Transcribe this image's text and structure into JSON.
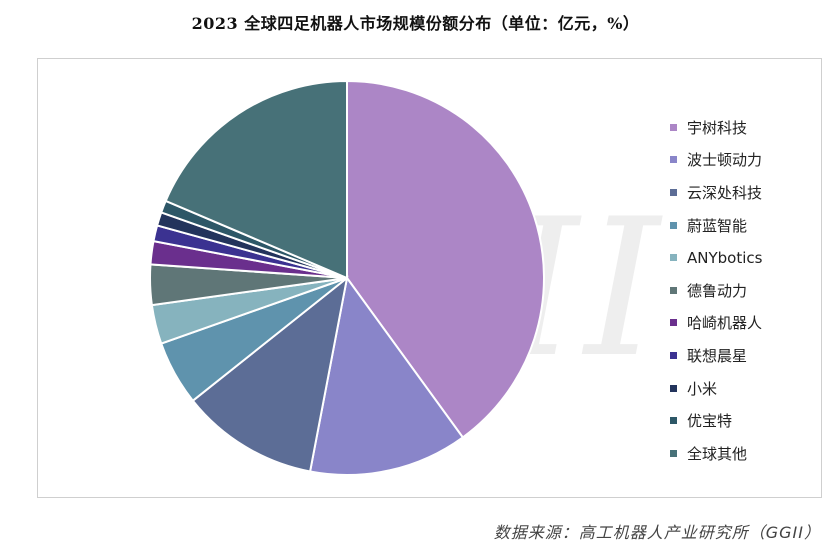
{
  "chart_data": {
    "type": "pie",
    "title": "2023 全球四足机器人市场规模份额分布（单位：亿元，%）",
    "source": "数据来源：高工机器人产业研究所（GGII）",
    "watermark": "GGII",
    "legend_position": "right",
    "slices": [
      {
        "label": "宇树科技",
        "value": 40.0,
        "color": "#ac86c6"
      },
      {
        "label": "波士顿动力",
        "value": 13.0,
        "color": "#8985c9"
      },
      {
        "label": "云深处科技",
        "value": 11.3,
        "color": "#5c6d96"
      },
      {
        "label": "蔚蓝智能",
        "value": 5.3,
        "color": "#5f93ad"
      },
      {
        "label": "ANYbotics",
        "value": 3.2,
        "color": "#86b3be"
      },
      {
        "label": "德鲁动力",
        "value": 3.3,
        "color": "#5f7677"
      },
      {
        "label": "哈崎机器人",
        "value": 1.9,
        "color": "#6a2f8d"
      },
      {
        "label": "联想晨星",
        "value": 1.3,
        "color": "#3b3291"
      },
      {
        "label": "小米",
        "value": 1.1,
        "color": "#23345c"
      },
      {
        "label": "优宝特",
        "value": 1.0,
        "color": "#2d5767"
      },
      {
        "label": "全球其他",
        "value": 18.6,
        "color": "#477178"
      }
    ]
  }
}
